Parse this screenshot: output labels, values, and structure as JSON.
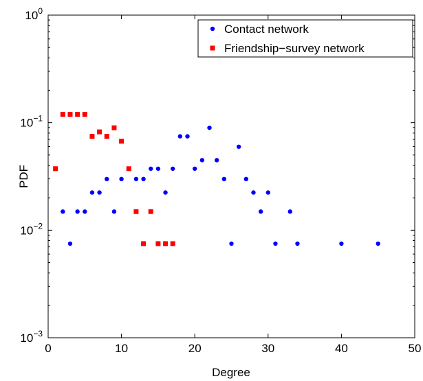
{
  "chart_data": {
    "type": "scatter",
    "xlabel": "Degree",
    "ylabel": "PDF",
    "xlim": [
      0,
      50
    ],
    "ylim": [
      0.001,
      1
    ],
    "yscale": "log",
    "grid": false,
    "legend_position": "top-right",
    "x_ticks": [
      "0",
      "10",
      "20",
      "30",
      "40",
      "50"
    ],
    "y_ticks": [
      {
        "value": 0.001,
        "base": "10",
        "exp": "−3"
      },
      {
        "value": 0.01,
        "base": "10",
        "exp": "−2"
      },
      {
        "value": 0.1,
        "base": "10",
        "exp": "−1"
      },
      {
        "value": 1,
        "base": "10",
        "exp": "0"
      }
    ],
    "series": [
      {
        "name": "Contact network",
        "color": "#0000ff",
        "marker": "circle",
        "points": [
          [
            2,
            0.0149
          ],
          [
            3,
            0.0075
          ],
          [
            4,
            0.0149
          ],
          [
            5,
            0.0149
          ],
          [
            6,
            0.0224
          ],
          [
            7,
            0.0224
          ],
          [
            8,
            0.0299
          ],
          [
            9,
            0.0149
          ],
          [
            10,
            0.0299
          ],
          [
            12,
            0.0299
          ],
          [
            13,
            0.0299
          ],
          [
            14,
            0.0373
          ],
          [
            15,
            0.0373
          ],
          [
            16,
            0.0224
          ],
          [
            17,
            0.0373
          ],
          [
            18,
            0.0746
          ],
          [
            19,
            0.0746
          ],
          [
            20,
            0.0373
          ],
          [
            21,
            0.0448
          ],
          [
            22,
            0.0896
          ],
          [
            23,
            0.0448
          ],
          [
            24,
            0.0299
          ],
          [
            25,
            0.0075
          ],
          [
            26,
            0.0597
          ],
          [
            27,
            0.0299
          ],
          [
            28,
            0.0224
          ],
          [
            29,
            0.0149
          ],
          [
            30,
            0.0224
          ],
          [
            31,
            0.0075
          ],
          [
            33,
            0.0149
          ],
          [
            34,
            0.0075
          ],
          [
            40,
            0.0075
          ],
          [
            45,
            0.0075
          ]
        ]
      },
      {
        "name": "Friendship−survey network",
        "color": "#ff0000",
        "marker": "square",
        "points": [
          [
            1,
            0.0373
          ],
          [
            2,
            0.1194
          ],
          [
            3,
            0.1194
          ],
          [
            4,
            0.1194
          ],
          [
            5,
            0.1194
          ],
          [
            6,
            0.0746
          ],
          [
            7,
            0.0821
          ],
          [
            8,
            0.0746
          ],
          [
            9,
            0.0896
          ],
          [
            10,
            0.0672
          ],
          [
            11,
            0.0373
          ],
          [
            12,
            0.0149
          ],
          [
            13,
            0.0075
          ],
          [
            14,
            0.0149
          ],
          [
            15,
            0.0075
          ],
          [
            16,
            0.0075
          ],
          [
            17,
            0.0075
          ]
        ]
      }
    ]
  }
}
